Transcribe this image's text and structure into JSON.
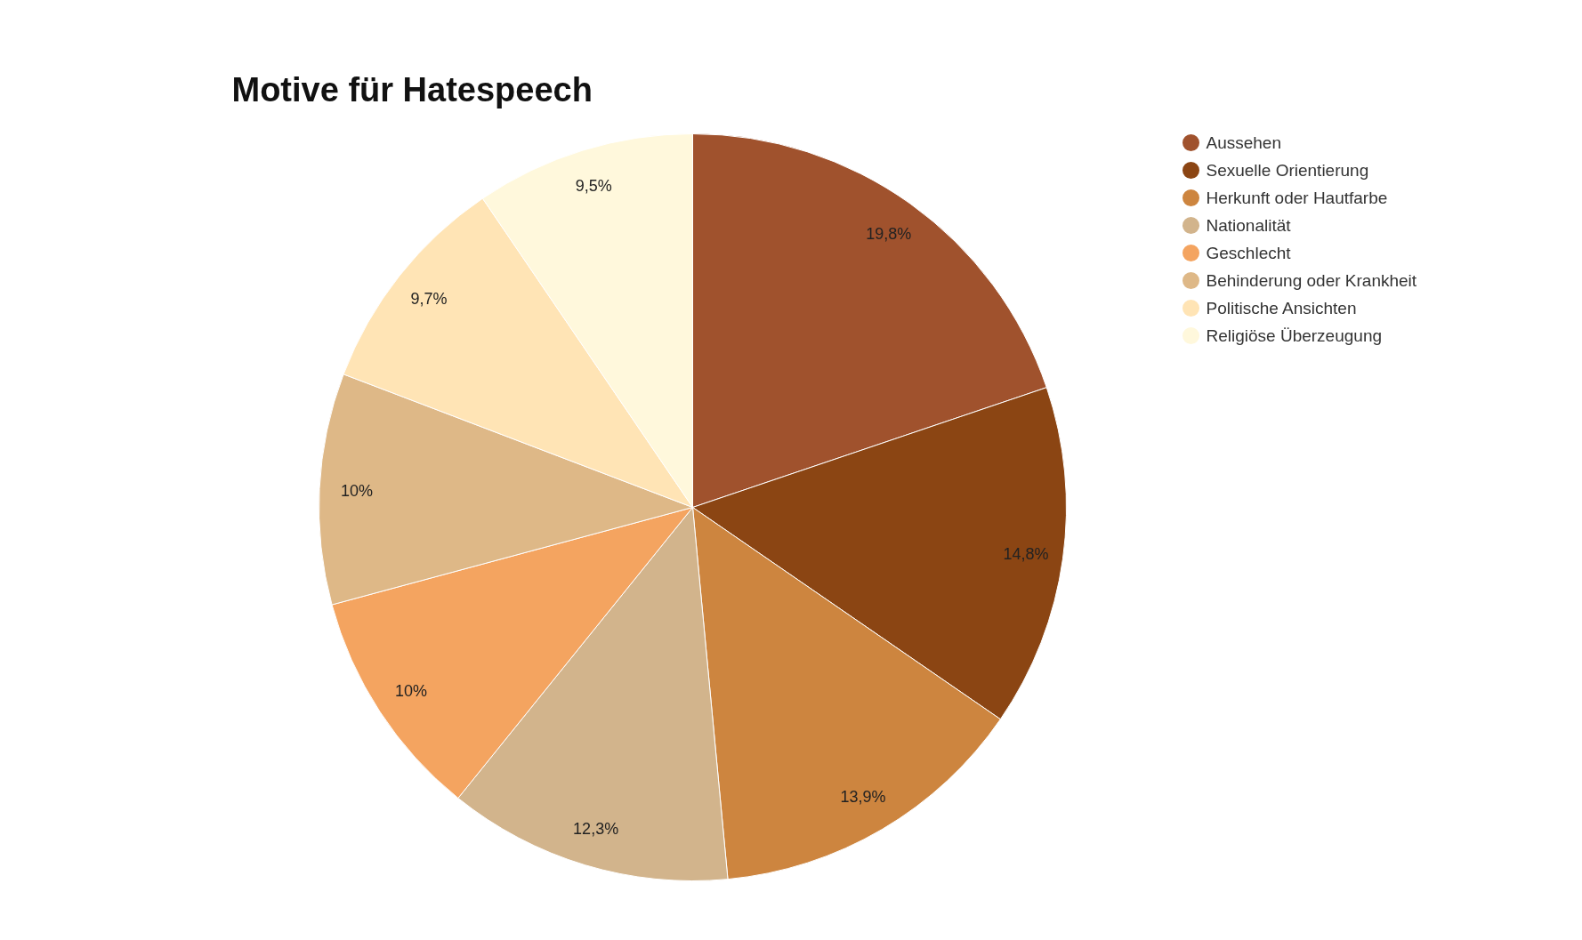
{
  "chart_data": {
    "type": "pie",
    "title": "Motive für Hatespeech",
    "categories": [
      "Aussehen",
      "Sexuelle Orientierung",
      "Herkunft oder Hautfarbe",
      "Nationalität",
      "Geschlecht",
      "Behinderung oder Krankheit",
      "Politische Ansichten",
      "Religiöse Überzeugung"
    ],
    "values": [
      19.8,
      14.8,
      13.9,
      12.3,
      10,
      10,
      9.7,
      9.5
    ],
    "colors": [
      "#a0522d",
      "#8b4513",
      "#cd853f",
      "#d2b48c",
      "#f4a460",
      "#deb887",
      "#ffe4b5",
      "#fff8dc"
    ],
    "value_labels": [
      "19,8%",
      "14,8%",
      "13,9%",
      "12,3%",
      "10%",
      "10%",
      "9,7%",
      "9,5%"
    ],
    "legend": "top right"
  }
}
